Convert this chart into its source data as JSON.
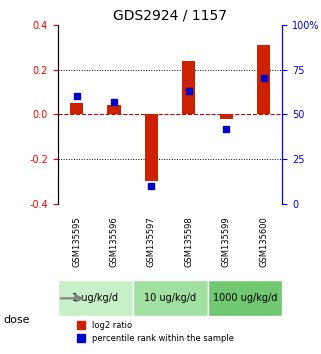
{
  "title": "GDS2924 / 1157",
  "samples": [
    "GSM135595",
    "GSM135596",
    "GSM135597",
    "GSM135598",
    "GSM135599",
    "GSM135600"
  ],
  "log2_ratio": [
    0.05,
    0.04,
    -0.3,
    0.24,
    -0.02,
    0.31
  ],
  "percentile_rank": [
    60,
    57,
    10,
    63,
    42,
    70
  ],
  "dose_groups": [
    {
      "label": "1 ug/kg/d",
      "samples": [
        0,
        1
      ],
      "color": "#c8f0c8"
    },
    {
      "label": "10 ug/kg/d",
      "samples": [
        2,
        3
      ],
      "color": "#a0e0a0"
    },
    {
      "label": "1000 ug/kg/d",
      "samples": [
        4,
        5
      ],
      "color": "#70c870"
    }
  ],
  "ylim_left": [
    -0.4,
    0.4
  ],
  "ylim_right": [
    0,
    100
  ],
  "left_yticks": [
    -0.4,
    -0.2,
    0.0,
    0.2,
    0.4
  ],
  "right_yticks": [
    0,
    25,
    50,
    75,
    100
  ],
  "right_yticklabels": [
    "0",
    "25",
    "50",
    "75",
    "100%"
  ],
  "bar_color": "#cc2200",
  "dot_color": "#0000cc",
  "bg_color": "#ffffff",
  "sample_bg_color": "#d0d0d0",
  "hline_color": "#cc0000",
  "grid_color": "#000000",
  "legend_red_label": "log2 ratio",
  "legend_blue_label": "percentile rank within the sample",
  "dose_label": "dose"
}
